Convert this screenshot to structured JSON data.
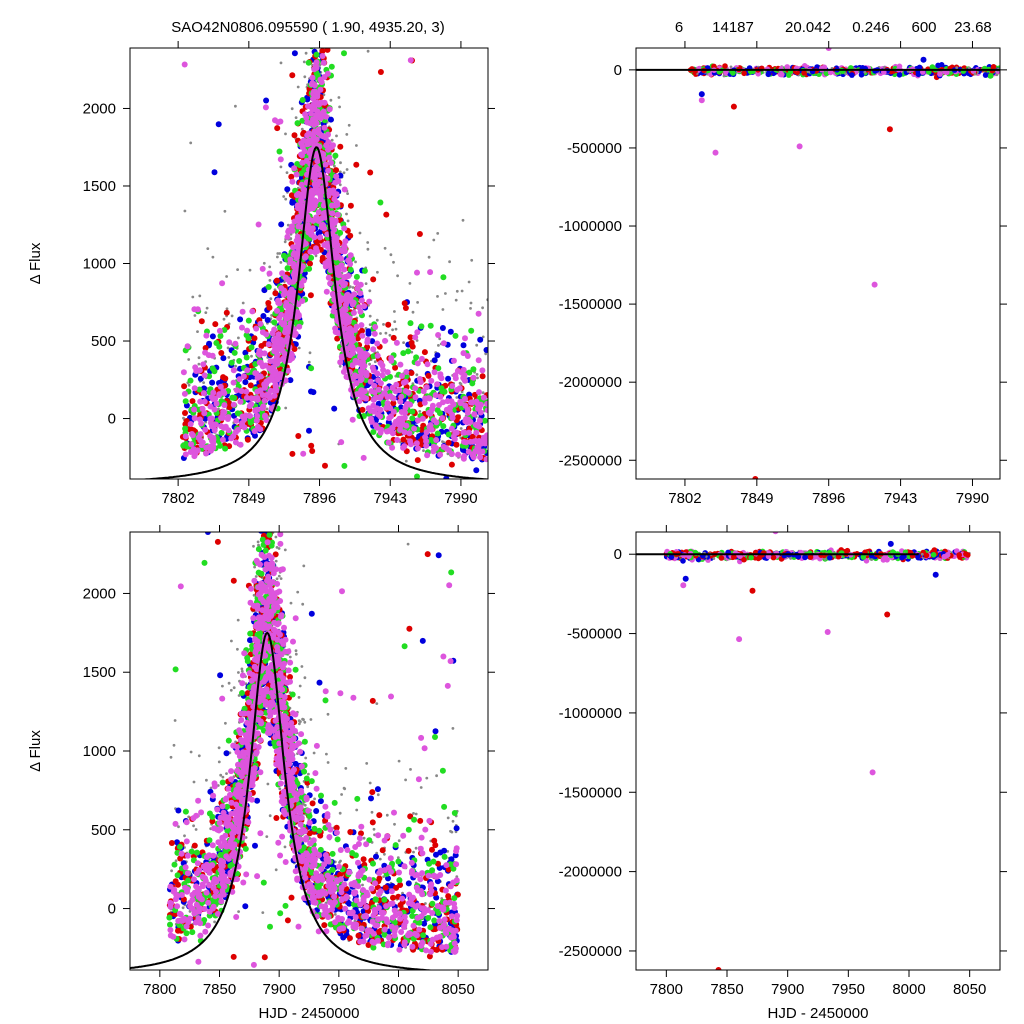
{
  "header": {
    "title": "SAO42N0806.095590 (  1.90, 4935.20,    3)",
    "stats": [
      "6",
      "14187",
      "20.042",
      "0.246",
      "600",
      "23.68"
    ]
  },
  "chart_data": [
    {
      "type": "scatter",
      "panel": "top-left",
      "ylabel": "Δ Flux",
      "xlabel": "",
      "xlim": [
        7770,
        8008
      ],
      "ylim": [
        -390,
        2390
      ],
      "x_ticks": [
        "7802",
        "7849",
        "7896",
        "7943",
        "7990"
      ],
      "x_tick_values": [
        7802,
        7849,
        7896,
        7943,
        7990
      ],
      "y_ticks": [
        0,
        500,
        1000,
        1500,
        2000
      ],
      "series_colors": [
        "#888888",
        "#0000dd",
        "#dd0000",
        "#22dd22",
        "#dd55dd"
      ],
      "model_curve": {
        "center": 7894,
        "peak": 1750,
        "width": 15,
        "baseline": -430
      },
      "scatter": {
        "x_range": [
          7805,
          8008
        ],
        "y_range": [
          -390,
          2390
        ]
      }
    },
    {
      "type": "scatter",
      "panel": "top-right",
      "ylabel": "",
      "xlabel": "",
      "xlim": [
        7770,
        8008
      ],
      "ylim": [
        -2620000,
        140000
      ],
      "x_ticks": [
        "7802",
        "7849",
        "7896",
        "7943",
        "7990"
      ],
      "x_tick_values": [
        7802,
        7849,
        7896,
        7943,
        7990
      ],
      "y_ticks": [
        "0",
        "-500000",
        "-1000000",
        "-1500000",
        "-2000000",
        "-2500000"
      ],
      "y_tick_values": [
        0,
        -500000,
        -1000000,
        -1500000,
        -2000000,
        -2500000
      ],
      "baseline": 0,
      "outliers": [
        {
          "x": 7813,
          "y": -155000,
          "color": "#0000dd"
        },
        {
          "x": 7813,
          "y": -195000,
          "color": "#dd55dd"
        },
        {
          "x": 7834,
          "y": -235000,
          "color": "#dd0000"
        },
        {
          "x": 7822,
          "y": -530000,
          "color": "#dd55dd"
        },
        {
          "x": 7877,
          "y": -490000,
          "color": "#dd55dd"
        },
        {
          "x": 7926,
          "y": -1375000,
          "color": "#dd55dd"
        },
        {
          "x": 7936,
          "y": -380000,
          "color": "#dd0000"
        },
        {
          "x": 7848,
          "y": -2620000,
          "color": "#dd0000"
        },
        {
          "x": 7896,
          "y": 140000,
          "color": "#dd55dd"
        },
        {
          "x": 7958,
          "y": 65000,
          "color": "#0000dd"
        }
      ]
    },
    {
      "type": "scatter",
      "panel": "bottom-left",
      "ylabel": "Δ Flux",
      "xlabel": "HJD - 2450000",
      "xlim": [
        7775,
        8075
      ],
      "ylim": [
        -390,
        2390
      ],
      "x_ticks": [
        "7800",
        "7850",
        "7900",
        "7950",
        "8000",
        "8050"
      ],
      "x_tick_values": [
        7800,
        7850,
        7900,
        7950,
        8000,
        8050
      ],
      "y_ticks": [
        0,
        500,
        1000,
        1500,
        2000
      ],
      "series_colors": [
        "#888888",
        "#0000dd",
        "#dd0000",
        "#22dd22",
        "#dd55dd"
      ],
      "model_curve": {
        "center": 7890,
        "peak": 1750,
        "width": 18,
        "baseline": -430
      },
      "scatter": {
        "x_range": [
          7808,
          8050
        ],
        "y_range": [
          -390,
          2390
        ]
      }
    },
    {
      "type": "scatter",
      "panel": "bottom-right",
      "ylabel": "",
      "xlabel": "HJD - 2450000",
      "xlim": [
        7775,
        8075
      ],
      "ylim": [
        -2620000,
        140000
      ],
      "x_ticks": [
        "7800",
        "7850",
        "7900",
        "7950",
        "8000",
        "8050"
      ],
      "x_tick_values": [
        7800,
        7850,
        7900,
        7950,
        8000,
        8050
      ],
      "y_ticks": [
        "0",
        "-500000",
        "-1000000",
        "-1500000",
        "-2000000",
        "-2500000"
      ],
      "y_tick_values": [
        0,
        -500000,
        -1000000,
        -1500000,
        -2000000,
        -2500000
      ],
      "baseline": 0,
      "outliers": [
        {
          "x": 7816,
          "y": -155000,
          "color": "#0000dd"
        },
        {
          "x": 7814,
          "y": -195000,
          "color": "#dd55dd"
        },
        {
          "x": 7871,
          "y": -230000,
          "color": "#dd0000"
        },
        {
          "x": 7860,
          "y": -535000,
          "color": "#dd55dd"
        },
        {
          "x": 7933,
          "y": -490000,
          "color": "#dd55dd"
        },
        {
          "x": 7970,
          "y": -1375000,
          "color": "#dd55dd"
        },
        {
          "x": 7982,
          "y": -380000,
          "color": "#dd0000"
        },
        {
          "x": 7843,
          "y": -2620000,
          "color": "#dd0000"
        },
        {
          "x": 7890,
          "y": 145000,
          "color": "#dd55dd"
        },
        {
          "x": 7985,
          "y": 65000,
          "color": "#0000dd"
        },
        {
          "x": 8022,
          "y": -130000,
          "color": "#0000dd"
        }
      ]
    }
  ]
}
